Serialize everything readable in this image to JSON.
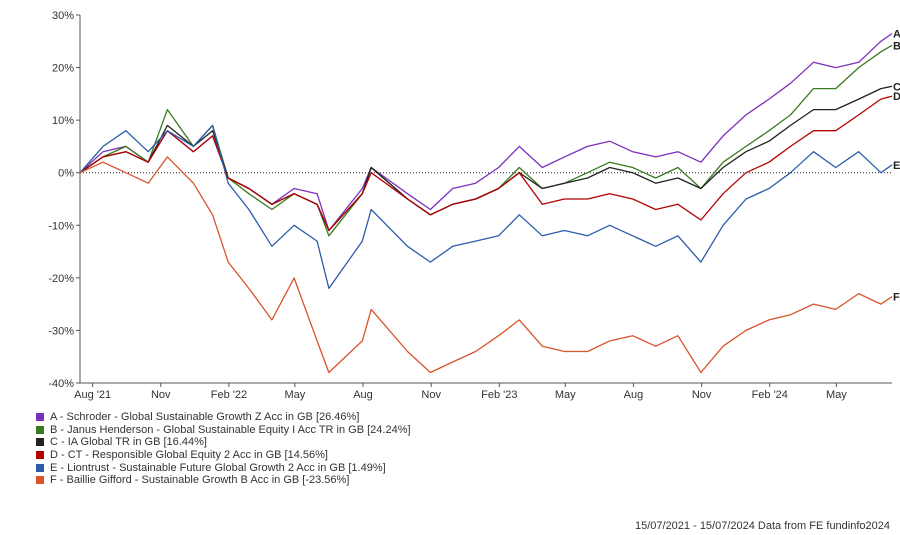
{
  "chart_data": {
    "type": "line",
    "title": "",
    "xlabel": "",
    "ylabel": "",
    "ylim": [
      -40,
      30
    ],
    "y_ticks": [
      "30%",
      "20%",
      "10%",
      "0%",
      "-10%",
      "-20%",
      "-30%",
      "-40%"
    ],
    "x_ticks": [
      "Aug '21",
      "Nov",
      "Feb '22",
      "May",
      "Aug",
      "Nov",
      "Feb '23",
      "May",
      "Aug",
      "Nov",
      "Feb '24",
      "May"
    ],
    "x_tick_dates": [
      "2021-08-01",
      "2021-11-01",
      "2022-02-01",
      "2022-05-01",
      "2022-08-01",
      "2022-11-01",
      "2023-02-01",
      "2023-05-01",
      "2023-08-01",
      "2023-11-01",
      "2024-02-01",
      "2024-05-01"
    ],
    "x_range": [
      "2021-07-15",
      "2024-07-15"
    ],
    "grid": false,
    "zero_line": "dotted",
    "legend_position": "bottom-left",
    "series": [
      {
        "name": "A - Schroder - Global Sustainable Growth Z Acc in GB [26.46%]",
        "label": "A",
        "color": "#7b2fbf",
        "x": [
          "2021-07-15",
          "2021-08-15",
          "2021-09-15",
          "2021-10-15",
          "2021-11-10",
          "2021-12-15",
          "2022-01-10",
          "2022-01-31",
          "2022-02-28",
          "2022-03-31",
          "2022-04-30",
          "2022-05-31",
          "2022-06-16",
          "2022-07-31",
          "2022-08-12",
          "2022-09-30",
          "2022-10-31",
          "2022-11-30",
          "2022-12-31",
          "2023-01-31",
          "2023-02-28",
          "2023-03-31",
          "2023-04-30",
          "2023-05-31",
          "2023-06-30",
          "2023-07-31",
          "2023-08-31",
          "2023-09-30",
          "2023-10-31",
          "2023-11-30",
          "2023-12-31",
          "2024-01-31",
          "2024-02-29",
          "2024-03-31",
          "2024-04-30",
          "2024-05-31",
          "2024-06-30",
          "2024-07-15"
        ],
        "values": [
          0,
          4,
          5,
          2,
          8,
          4,
          7,
          -1,
          -3,
          -6,
          -3,
          -4,
          -11,
          -3,
          1,
          -4,
          -7,
          -3,
          -2,
          1,
          5,
          1,
          3,
          5,
          6,
          4,
          3,
          4,
          2,
          7,
          11,
          14,
          17,
          21,
          20,
          21,
          25,
          26.46
        ]
      },
      {
        "name": "B - Janus Henderson - Global Sustainable Equity I Acc TR in GB [24.24%]",
        "label": "B",
        "color": "#3b7a1e",
        "x": [
          "2021-07-15",
          "2021-08-15",
          "2021-09-15",
          "2021-10-15",
          "2021-11-10",
          "2021-12-15",
          "2022-01-10",
          "2022-01-31",
          "2022-02-28",
          "2022-03-31",
          "2022-04-30",
          "2022-05-31",
          "2022-06-16",
          "2022-07-31",
          "2022-08-12",
          "2022-09-30",
          "2022-10-31",
          "2022-11-30",
          "2022-12-31",
          "2023-01-31",
          "2023-02-28",
          "2023-03-31",
          "2023-04-30",
          "2023-05-31",
          "2023-06-30",
          "2023-07-31",
          "2023-08-31",
          "2023-09-30",
          "2023-10-31",
          "2023-11-30",
          "2023-12-31",
          "2024-01-31",
          "2024-02-29",
          "2024-03-31",
          "2024-04-30",
          "2024-05-31",
          "2024-06-30",
          "2024-07-15"
        ],
        "values": [
          0,
          3,
          5,
          2,
          12,
          5,
          9,
          -1,
          -4,
          -7,
          -4,
          -6,
          -12,
          -4,
          1,
          -5,
          -8,
          -6,
          -5,
          -3,
          1,
          -3,
          -2,
          0,
          2,
          1,
          -1,
          1,
          -3,
          2,
          5,
          8,
          11,
          16,
          16,
          20,
          23,
          24.24
        ]
      },
      {
        "name": "C - IA Global TR in GB [16.44%]",
        "label": "C",
        "color": "#222222",
        "x": [
          "2021-07-15",
          "2021-08-15",
          "2021-09-15",
          "2021-10-15",
          "2021-11-10",
          "2021-12-15",
          "2022-01-10",
          "2022-01-31",
          "2022-02-28",
          "2022-03-31",
          "2022-04-30",
          "2022-05-31",
          "2022-06-16",
          "2022-07-31",
          "2022-08-12",
          "2022-09-30",
          "2022-10-31",
          "2022-11-30",
          "2022-12-31",
          "2023-01-31",
          "2023-02-28",
          "2023-03-31",
          "2023-04-30",
          "2023-05-31",
          "2023-06-30",
          "2023-07-31",
          "2023-08-31",
          "2023-09-30",
          "2023-10-31",
          "2023-11-30",
          "2023-12-31",
          "2024-01-31",
          "2024-02-29",
          "2024-03-31",
          "2024-04-30",
          "2024-05-31",
          "2024-06-30",
          "2024-07-15"
        ],
        "values": [
          0,
          3,
          4,
          2,
          9,
          5,
          8,
          -1,
          -3,
          -6,
          -4,
          -6,
          -11,
          -4,
          1,
          -5,
          -8,
          -6,
          -5,
          -3,
          0,
          -3,
          -2,
          -1,
          1,
          0,
          -2,
          -1,
          -3,
          1,
          4,
          6,
          9,
          12,
          12,
          14,
          16,
          16.44
        ]
      },
      {
        "name": "D - CT - Responsible Global Equity 2 Acc in GB [14.56%]",
        "label": "D",
        "color": "#b30000",
        "x": [
          "2021-07-15",
          "2021-08-15",
          "2021-09-15",
          "2021-10-15",
          "2021-11-10",
          "2021-12-15",
          "2022-01-10",
          "2022-01-31",
          "2022-02-28",
          "2022-03-31",
          "2022-04-30",
          "2022-05-31",
          "2022-06-16",
          "2022-07-31",
          "2022-08-12",
          "2022-09-30",
          "2022-10-31",
          "2022-11-30",
          "2022-12-31",
          "2023-01-31",
          "2023-02-28",
          "2023-03-31",
          "2023-04-30",
          "2023-05-31",
          "2023-06-30",
          "2023-07-31",
          "2023-08-31",
          "2023-09-30",
          "2023-10-31",
          "2023-11-30",
          "2023-12-31",
          "2024-01-31",
          "2024-02-29",
          "2024-03-31",
          "2024-04-30",
          "2024-05-31",
          "2024-06-30",
          "2024-07-15"
        ],
        "values": [
          0,
          3,
          4,
          2,
          8,
          4,
          7,
          -1,
          -3,
          -6,
          -4,
          -6,
          -11,
          -4,
          0,
          -5,
          -8,
          -6,
          -5,
          -3,
          0,
          -6,
          -5,
          -5,
          -4,
          -5,
          -7,
          -6,
          -9,
          -4,
          0,
          2,
          5,
          8,
          8,
          11,
          14,
          14.56
        ]
      },
      {
        "name": "E - Liontrust - Sustainable Future Global Growth 2 Acc in GB [1.49%]",
        "label": "E",
        "color": "#2a5caa",
        "x": [
          "2021-07-15",
          "2021-08-15",
          "2021-09-15",
          "2021-10-15",
          "2021-11-10",
          "2021-12-15",
          "2022-01-10",
          "2022-01-31",
          "2022-02-28",
          "2022-03-31",
          "2022-04-30",
          "2022-05-31",
          "2022-06-16",
          "2022-07-31",
          "2022-08-12",
          "2022-09-30",
          "2022-10-31",
          "2022-11-30",
          "2022-12-31",
          "2023-01-31",
          "2023-02-28",
          "2023-03-31",
          "2023-04-30",
          "2023-05-31",
          "2023-06-30",
          "2023-07-31",
          "2023-08-31",
          "2023-09-30",
          "2023-10-31",
          "2023-11-30",
          "2023-12-31",
          "2024-01-31",
          "2024-02-29",
          "2024-03-31",
          "2024-04-30",
          "2024-05-31",
          "2024-06-30",
          "2024-07-15"
        ],
        "values": [
          0,
          5,
          8,
          4,
          8,
          5,
          9,
          -2,
          -7,
          -14,
          -10,
          -13,
          -22,
          -13,
          -7,
          -14,
          -17,
          -14,
          -13,
          -12,
          -8,
          -12,
          -11,
          -12,
          -10,
          -12,
          -14,
          -12,
          -17,
          -10,
          -5,
          -3,
          0,
          4,
          1,
          4,
          0,
          1.49
        ]
      },
      {
        "name": "F - Baillie Gifford - Sustainable Growth B Acc in GB [-23.56%]",
        "label": "F",
        "color": "#d9532b",
        "x": [
          "2021-07-15",
          "2021-08-15",
          "2021-09-15",
          "2021-10-15",
          "2021-11-10",
          "2021-12-15",
          "2022-01-10",
          "2022-01-31",
          "2022-02-28",
          "2022-03-31",
          "2022-04-30",
          "2022-05-31",
          "2022-06-16",
          "2022-07-31",
          "2022-08-12",
          "2022-09-30",
          "2022-10-31",
          "2022-11-30",
          "2022-12-31",
          "2023-01-31",
          "2023-02-28",
          "2023-03-31",
          "2023-04-30",
          "2023-05-31",
          "2023-06-30",
          "2023-07-31",
          "2023-08-31",
          "2023-09-30",
          "2023-10-31",
          "2023-11-30",
          "2023-12-31",
          "2024-01-31",
          "2024-02-29",
          "2024-03-31",
          "2024-04-30",
          "2024-05-31",
          "2024-06-30",
          "2024-07-15"
        ],
        "values": [
          0,
          2,
          0,
          -2,
          3,
          -2,
          -8,
          -17,
          -22,
          -28,
          -20,
          -32,
          -38,
          -32,
          -26,
          -34,
          -38,
          -36,
          -34,
          -31,
          -28,
          -33,
          -34,
          -34,
          -32,
          -31,
          -33,
          -31,
          -38,
          -33,
          -30,
          -28,
          -27,
          -25,
          -26,
          -23,
          -25,
          -23.56
        ]
      }
    ]
  },
  "footer": {
    "text": "15/07/2021 - 15/07/2024 Data from FE fundinfo2024"
  }
}
